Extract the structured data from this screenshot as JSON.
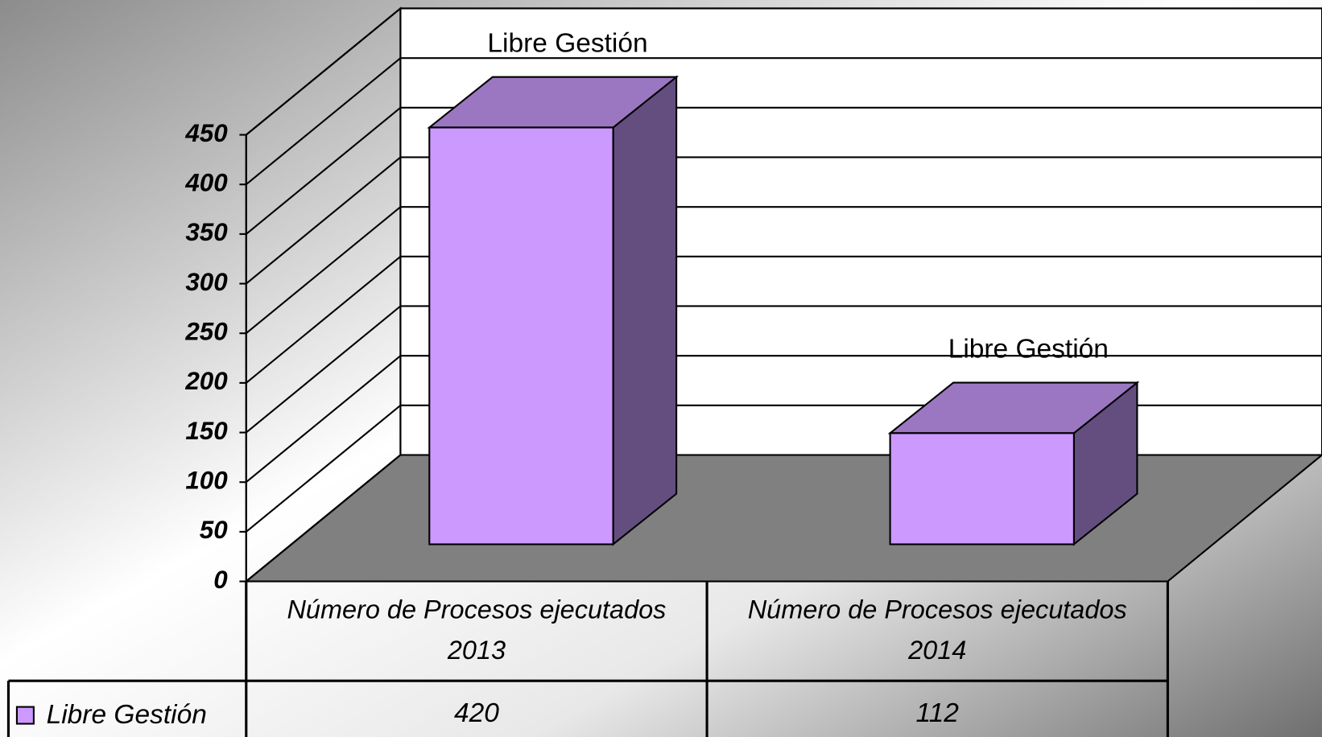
{
  "chart_data": {
    "type": "bar3d",
    "categories": [
      "Número de Procesos ejecutados 2013",
      "Número de Procesos ejecutados 2014"
    ],
    "series": [
      {
        "name": "Libre Gestión",
        "color": "#cc99ff",
        "values": [
          420,
          112
        ]
      }
    ],
    "ylim": [
      0,
      450
    ],
    "yticks": [
      0,
      50,
      100,
      150,
      200,
      250,
      300,
      350,
      400,
      450
    ],
    "grid": true
  }
}
